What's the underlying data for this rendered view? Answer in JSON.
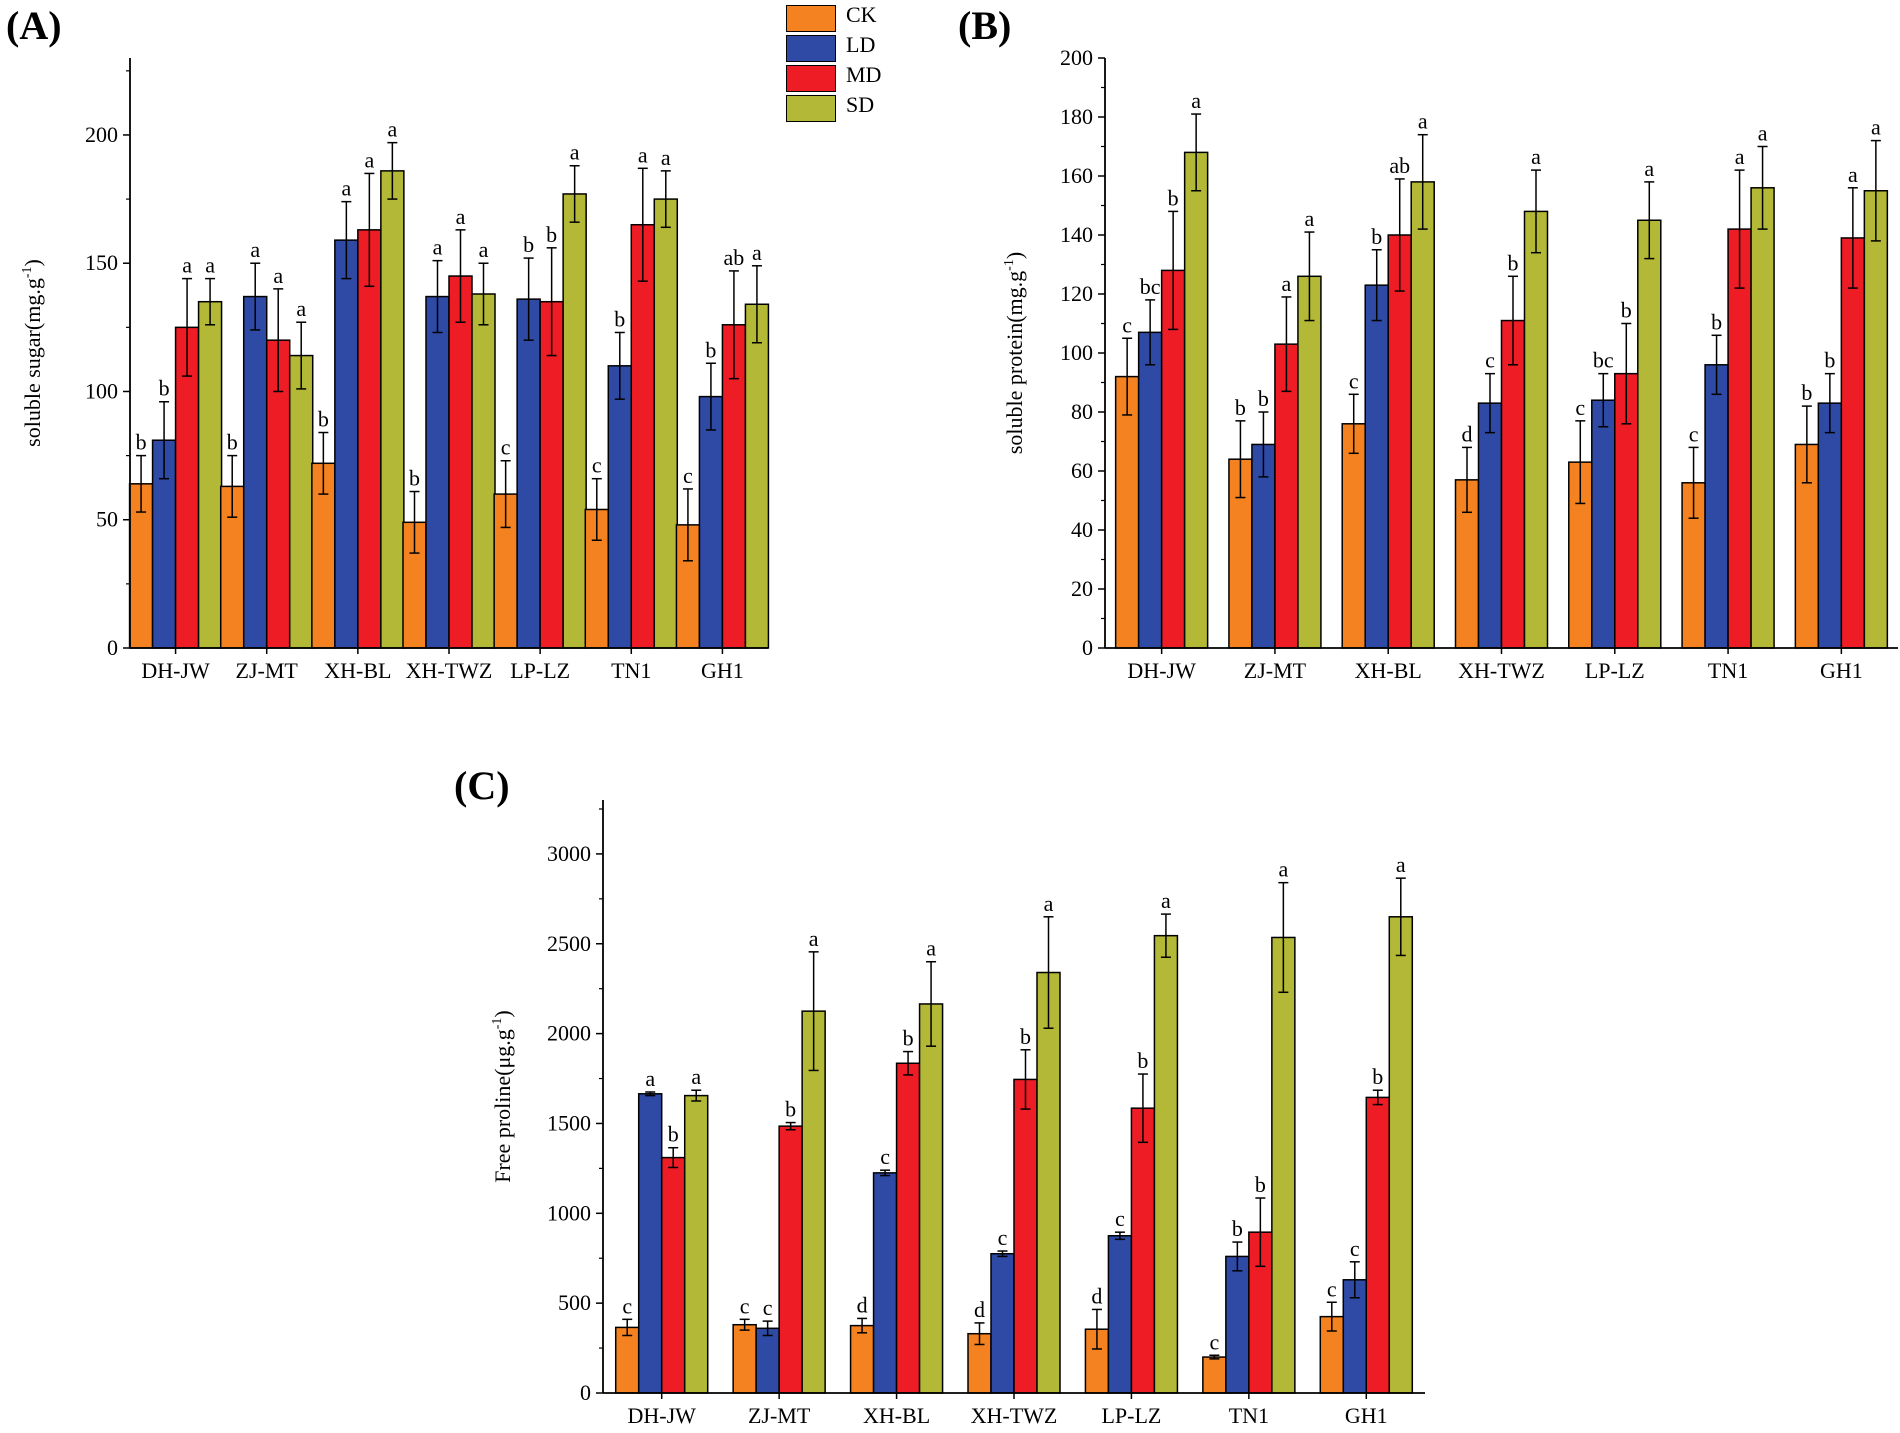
{
  "legend": [
    {
      "name": "CK",
      "color": "#f58220"
    },
    {
      "name": "LD",
      "color": "#2e4aa5"
    },
    {
      "name": "MD",
      "color": "#ee1c25"
    },
    {
      "name": "SD",
      "color": "#b3b936"
    }
  ],
  "chart_data": [
    {
      "panel_label": "(A)",
      "type": "bar",
      "ylabel": "soluble sugar(mg.g",
      "ylabel_sup": "-1",
      "ylabel_end": ")",
      "ylim": [
        0,
        230
      ],
      "yticks": [
        0,
        50,
        100,
        150,
        200
      ],
      "categories": [
        "DH-JW",
        "ZJ-MT",
        "XH-BL",
        "XH-TWZ",
        "LP-LZ",
        "TN1",
        "GH1"
      ],
      "series": [
        {
          "name": "CK",
          "values": [
            64,
            63,
            72,
            49,
            60,
            54,
            48
          ],
          "errors": [
            11,
            12,
            12,
            12,
            13,
            12,
            14
          ],
          "letters": [
            "b",
            "b",
            "b",
            "b",
            "c",
            "c",
            "c"
          ]
        },
        {
          "name": "LD",
          "values": [
            81,
            137,
            159,
            137,
            136,
            110,
            98
          ],
          "errors": [
            15,
            13,
            15,
            14,
            16,
            13,
            13
          ],
          "letters": [
            "b",
            "a",
            "a",
            "a",
            "b",
            "b",
            "b"
          ]
        },
        {
          "name": "MD",
          "values": [
            125,
            120,
            163,
            145,
            135,
            165,
            126
          ],
          "errors": [
            19,
            20,
            22,
            18,
            21,
            22,
            21
          ],
          "letters": [
            "a",
            "a",
            "a",
            "a",
            "b",
            "a",
            "ab"
          ]
        },
        {
          "name": "SD",
          "values": [
            135,
            114,
            186,
            138,
            177,
            175,
            134
          ],
          "errors": [
            9,
            13,
            11,
            12,
            11,
            11,
            15
          ],
          "letters": [
            "a",
            "a",
            "a",
            "a",
            "a",
            "a",
            "a"
          ]
        }
      ]
    },
    {
      "panel_label": "(B)",
      "type": "bar",
      "ylabel": "soluble protein(mg.g",
      "ylabel_sup": "-1",
      "ylabel_end": ")",
      "ylim": [
        0,
        200
      ],
      "yticks": [
        0,
        20,
        40,
        60,
        80,
        100,
        120,
        140,
        160,
        180,
        200
      ],
      "categories": [
        "DH-JW",
        "ZJ-MT",
        "XH-BL",
        "XH-TWZ",
        "LP-LZ",
        "TN1",
        "GH1"
      ],
      "series": [
        {
          "name": "CK",
          "values": [
            92,
            64,
            76,
            57,
            63,
            56,
            69
          ],
          "errors": [
            13,
            13,
            10,
            11,
            14,
            12,
            13
          ],
          "letters": [
            "c",
            "b",
            "c",
            "d",
            "c",
            "c",
            "b"
          ]
        },
        {
          "name": "LD",
          "values": [
            107,
            69,
            123,
            83,
            84,
            96,
            83
          ],
          "errors": [
            11,
            11,
            12,
            10,
            9,
            10,
            10
          ],
          "letters": [
            "bc",
            "b",
            "b",
            "c",
            "bc",
            "b",
            "b"
          ]
        },
        {
          "name": "MD",
          "values": [
            128,
            103,
            140,
            111,
            93,
            142,
            139
          ],
          "errors": [
            20,
            16,
            19,
            15,
            17,
            20,
            17
          ],
          "letters": [
            "b",
            "a",
            "ab",
            "b",
            "b",
            "a",
            "a"
          ]
        },
        {
          "name": "SD",
          "values": [
            168,
            126,
            158,
            148,
            145,
            156,
            155
          ],
          "errors": [
            13,
            15,
            16,
            14,
            13,
            14,
            17
          ],
          "letters": [
            "a",
            "a",
            "a",
            "a",
            "a",
            "a",
            "a"
          ]
        }
      ]
    },
    {
      "panel_label": "(C)",
      "type": "bar",
      "ylabel": "Free proline(μg.g",
      "ylabel_sup": "-1",
      "ylabel_end": ")",
      "ylim": [
        0,
        3300
      ],
      "yticks": [
        0,
        500,
        1000,
        1500,
        2000,
        2500,
        3000
      ],
      "categories": [
        "DH-JW",
        "ZJ-MT",
        "XH-BL",
        "XH-TWZ",
        "LP-LZ",
        "TN1",
        "GH1"
      ],
      "series": [
        {
          "name": "CK",
          "values": [
            365,
            380,
            375,
            330,
            355,
            200,
            425
          ],
          "errors": [
            45,
            30,
            40,
            60,
            110,
            10,
            80
          ],
          "letters": [
            "c",
            "c",
            "d",
            "d",
            "d",
            "c",
            "c"
          ]
        },
        {
          "name": "LD",
          "values": [
            1665,
            360,
            1225,
            775,
            875,
            760,
            630
          ],
          "errors": [
            10,
            40,
            15,
            15,
            20,
            80,
            100
          ],
          "letters": [
            "a",
            "c",
            "c",
            "c",
            "c",
            "b",
            "c"
          ]
        },
        {
          "name": "MD",
          "values": [
            1310,
            1485,
            1835,
            1745,
            1585,
            895,
            1645
          ],
          "errors": [
            55,
            20,
            65,
            165,
            190,
            190,
            40
          ],
          "letters": [
            "b",
            "b",
            "b",
            "b",
            "b",
            "b",
            "b"
          ]
        },
        {
          "name": "SD",
          "values": [
            1655,
            2125,
            2165,
            2340,
            2545,
            2535,
            2650
          ],
          "errors": [
            30,
            330,
            235,
            310,
            120,
            305,
            215
          ],
          "letters": [
            "a",
            "a",
            "a",
            "a",
            "a",
            "a",
            "a"
          ]
        }
      ]
    }
  ]
}
